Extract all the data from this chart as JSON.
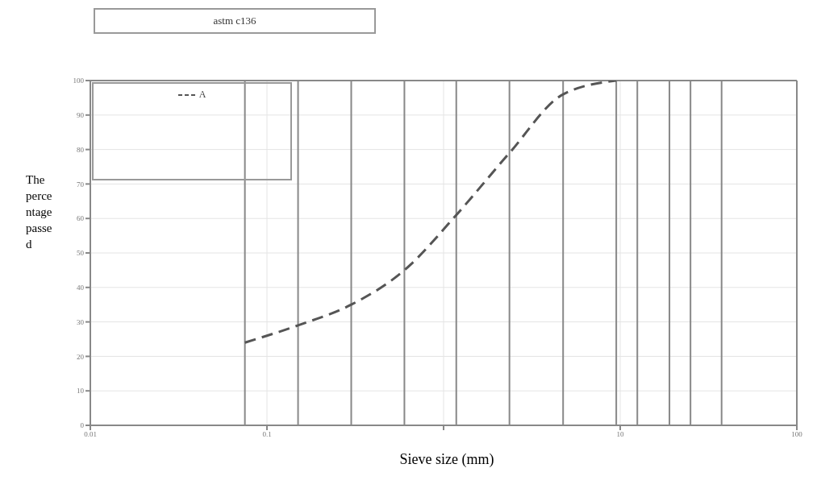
{
  "chart_data": {
    "type": "line",
    "title": "astm c136",
    "xlabel": "Sieve size (mm)",
    "ylabel": "The percentage passed",
    "log": "x",
    "xlim": [
      0.01,
      100
    ],
    "xticks": [
      0.01,
      0.1,
      {
        "value": 1,
        "label": null
      },
      10,
      100
    ],
    "ylim": [
      0,
      100
    ],
    "yticks": [
      0,
      10,
      20,
      30,
      40,
      50,
      60,
      70,
      80,
      90,
      100
    ],
    "grid": true,
    "line_style": "dashed",
    "marker": "none",
    "legend": "top left",
    "x": [
      0.075,
      0.15,
      0.3,
      0.6,
      1.18,
      2.36,
      4.75,
      9.5
    ],
    "series": [
      {
        "name": "A",
        "color": "#555555",
        "values": [
          24,
          29,
          35,
          45,
          61,
          79,
          96,
          100
        ]
      }
    ],
    "ref_lines": [
      {
        "axis": "x",
        "value": 0.075,
        "color": "#888888"
      },
      {
        "axis": "x",
        "value": 0.15,
        "color": "#888888"
      },
      {
        "axis": "x",
        "value": 0.3,
        "color": "#888888"
      },
      {
        "axis": "x",
        "value": 0.6,
        "color": "#888888"
      },
      {
        "axis": "x",
        "value": 1.18,
        "color": "#888888"
      },
      {
        "axis": "x",
        "value": 2.36,
        "color": "#888888"
      },
      {
        "axis": "x",
        "value": 4.75,
        "color": "#888888"
      },
      {
        "axis": "x",
        "value": 9.5,
        "color": "#888888"
      },
      {
        "axis": "x",
        "value": 12.5,
        "color": "#888888"
      },
      {
        "axis": "x",
        "value": 19,
        "color": "#888888"
      },
      {
        "axis": "x",
        "value": 25,
        "color": "#888888"
      },
      {
        "axis": "x",
        "value": 37.5,
        "color": "#888888"
      }
    ]
  }
}
